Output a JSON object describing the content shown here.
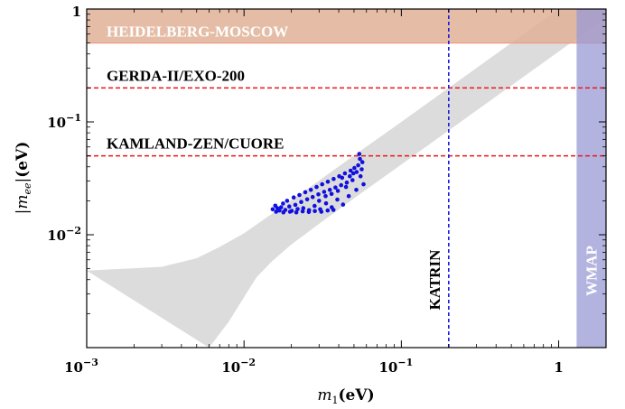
{
  "chart_data": {
    "type": "scatter",
    "xscale": "log",
    "yscale": "log",
    "xlim": [
      0.001,
      2.0
    ],
    "ylim": [
      0.001,
      1.0
    ],
    "xlabel": "m₁(eV)",
    "ylabel": "|mₑₑ|(eV)",
    "x_ticks": [
      {
        "value": 0.001,
        "base": "10",
        "exp": "−3"
      },
      {
        "value": 0.01,
        "base": "10",
        "exp": "−2"
      },
      {
        "value": 0.1,
        "base": "10",
        "exp": "−1"
      },
      {
        "value": 1,
        "text": "1"
      }
    ],
    "y_ticks": [
      {
        "value": 0.01,
        "base": "10",
        "exp": "−2"
      },
      {
        "value": 0.1,
        "base": "10",
        "exp": "−1"
      },
      {
        "value": 1,
        "text": "1"
      }
    ],
    "horizontal_bands": [
      {
        "label": "HEIDELBERG-MOSCOW",
        "y_range": [
          0.5,
          1.0
        ],
        "color": "#e0b196",
        "edge": "#f09a88",
        "label_color": "#ffffff"
      }
    ],
    "vertical_bands": [
      {
        "label": "WMAP",
        "x_range": [
          1.3,
          2.0
        ],
        "color": "#9a9ad6",
        "label_color": "#ffffff"
      }
    ],
    "horizontal_lines": [
      {
        "label": "GERDA-II/EXO-200",
        "y": 0.2,
        "color": "#e8161b"
      },
      {
        "label": "KAMLAND-ZEN/CUORE",
        "y": 0.05,
        "color": "#e8161b"
      }
    ],
    "vertical_lines": [
      {
        "label": "KATRIN",
        "x": 0.2,
        "color": "#1a1ae0"
      }
    ],
    "shaded_region": {
      "color": "#dcdcdc",
      "upper": [
        [
          0.001,
          0.0048
        ],
        [
          0.003,
          0.0052
        ],
        [
          0.005,
          0.0062
        ],
        [
          0.007,
          0.0078
        ],
        [
          0.01,
          0.0103
        ],
        [
          0.014,
          0.0143
        ],
        [
          0.02,
          0.0203
        ],
        [
          0.03,
          0.0302
        ],
        [
          0.05,
          0.0503
        ],
        [
          0.1,
          0.1
        ],
        [
          0.2,
          0.2
        ],
        [
          0.5,
          0.5
        ],
        [
          1.0,
          1.0
        ],
        [
          2.0,
          2.0
        ]
      ],
      "lower": [
        [
          2.0,
          0.84
        ],
        [
          1.0,
          0.42
        ],
        [
          0.5,
          0.21
        ],
        [
          0.2,
          0.084
        ],
        [
          0.1,
          0.042
        ],
        [
          0.05,
          0.021
        ],
        [
          0.03,
          0.0125
        ],
        [
          0.02,
          0.0082
        ],
        [
          0.015,
          0.0058
        ],
        [
          0.012,
          0.0042
        ],
        [
          0.01,
          0.0028
        ],
        [
          0.008,
          0.0017
        ],
        [
          0.006,
          0.001
        ]
      ]
    },
    "scatter_series": {
      "color": "#1010e0",
      "points": [
        [
          0.0152,
          0.0168
        ],
        [
          0.0158,
          0.0181
        ],
        [
          0.0163,
          0.0172
        ],
        [
          0.0168,
          0.0164
        ],
        [
          0.0172,
          0.0175
        ],
        [
          0.0177,
          0.0189
        ],
        [
          0.0183,
          0.0166
        ],
        [
          0.0188,
          0.02
        ],
        [
          0.0194,
          0.0178
        ],
        [
          0.0201,
          0.0163
        ],
        [
          0.0207,
          0.0214
        ],
        [
          0.0212,
          0.0184
        ],
        [
          0.0219,
          0.0169
        ],
        [
          0.0225,
          0.0225
        ],
        [
          0.0231,
          0.0195
        ],
        [
          0.0238,
          0.0172
        ],
        [
          0.0245,
          0.0238
        ],
        [
          0.0252,
          0.0206
        ],
        [
          0.0259,
          0.0165
        ],
        [
          0.0266,
          0.025
        ],
        [
          0.0273,
          0.0216
        ],
        [
          0.0281,
          0.018
        ],
        [
          0.0289,
          0.0265
        ],
        [
          0.0297,
          0.0228
        ],
        [
          0.0305,
          0.0168
        ],
        [
          0.0314,
          0.028
        ],
        [
          0.0323,
          0.024
        ],
        [
          0.0332,
          0.019
        ],
        [
          0.0341,
          0.0295
        ],
        [
          0.0351,
          0.025
        ],
        [
          0.0361,
          0.0175
        ],
        [
          0.0371,
          0.0312
        ],
        [
          0.0381,
          0.0262
        ],
        [
          0.0392,
          0.0205
        ],
        [
          0.0403,
          0.033
        ],
        [
          0.0414,
          0.0275
        ],
        [
          0.0426,
          0.0185
        ],
        [
          0.0438,
          0.035
        ],
        [
          0.045,
          0.029
        ],
        [
          0.0463,
          0.022
        ],
        [
          0.0476,
          0.037
        ],
        [
          0.0489,
          0.0305
        ],
        [
          0.0503,
          0.039
        ],
        [
          0.0517,
          0.025
        ],
        [
          0.0532,
          0.0412
        ],
        [
          0.054,
          0.052
        ],
        [
          0.055,
          0.033
        ],
        [
          0.0565,
          0.044
        ],
        [
          0.0575,
          0.028
        ],
        [
          0.0545,
          0.047
        ],
        [
          0.016,
          0.016
        ],
        [
          0.0178,
          0.0158
        ],
        [
          0.0196,
          0.016
        ],
        [
          0.0215,
          0.0158
        ],
        [
          0.0236,
          0.0161
        ],
        [
          0.0258,
          0.0159
        ],
        [
          0.0282,
          0.0162
        ],
        [
          0.031,
          0.016
        ],
        [
          0.034,
          0.0164
        ],
        [
          0.037,
          0.0166
        ],
        [
          0.03,
          0.02
        ],
        [
          0.033,
          0.022
        ],
        [
          0.036,
          0.023
        ],
        [
          0.0395,
          0.0245
        ],
        [
          0.042,
          0.032
        ],
        [
          0.0445,
          0.0265
        ],
        [
          0.047,
          0.033
        ],
        [
          0.0495,
          0.035
        ],
        [
          0.052,
          0.036
        ],
        [
          0.056,
          0.038
        ]
      ]
    }
  }
}
